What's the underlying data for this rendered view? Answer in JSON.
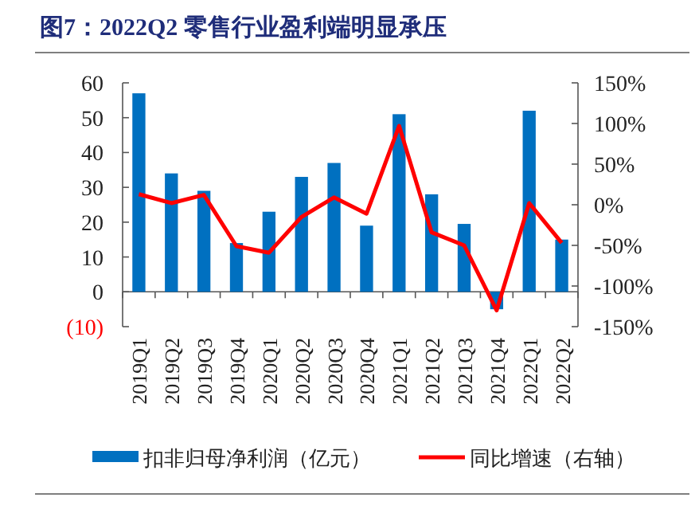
{
  "chart_data": {
    "type": "bar",
    "title": "图7：2022Q2 零售行业盈利端明显承压",
    "categories": [
      "2019Q1",
      "2019Q2",
      "2019Q3",
      "2019Q4",
      "2020Q1",
      "2020Q2",
      "2020Q3",
      "2020Q4",
      "2021Q1",
      "2021Q2",
      "2021Q3",
      "2021Q4",
      "2022Q1",
      "2022Q2"
    ],
    "series": [
      {
        "name": "扣非归母净利润（亿元）",
        "color": "#0070c0",
        "values": [
          57,
          34,
          29,
          14,
          23,
          33,
          37,
          19,
          51,
          28,
          19.5,
          -5,
          52,
          15
        ]
      },
      {
        "name": "同比增速（右轴）",
        "type": "line",
        "axis": "y2",
        "color": "#ff0000",
        "values": [
          13,
          2,
          12,
          -51,
          -59,
          -15,
          9,
          -11,
          97,
          -34,
          -50,
          -130,
          2,
          -47
        ]
      }
    ],
    "ylim": [
      -10,
      60
    ],
    "yticks": [
      {
        "value": -10,
        "label": "(10)"
      },
      0,
      10,
      20,
      30,
      40,
      50,
      60
    ],
    "y2lim": [
      -150,
      150
    ],
    "y2ticks": [
      {
        "value": -150,
        "label": "-150%"
      },
      {
        "value": -100,
        "label": "-100%"
      },
      {
        "value": -50,
        "label": "-50%"
      },
      {
        "value": 0,
        "label": "0%"
      },
      {
        "value": 50,
        "label": "50%"
      },
      {
        "value": 100,
        "label": "100%"
      },
      {
        "value": 150,
        "label": "150%"
      }
    ],
    "legend": "bottom",
    "grid": false,
    "marker": "none",
    "line_style": "solid"
  }
}
